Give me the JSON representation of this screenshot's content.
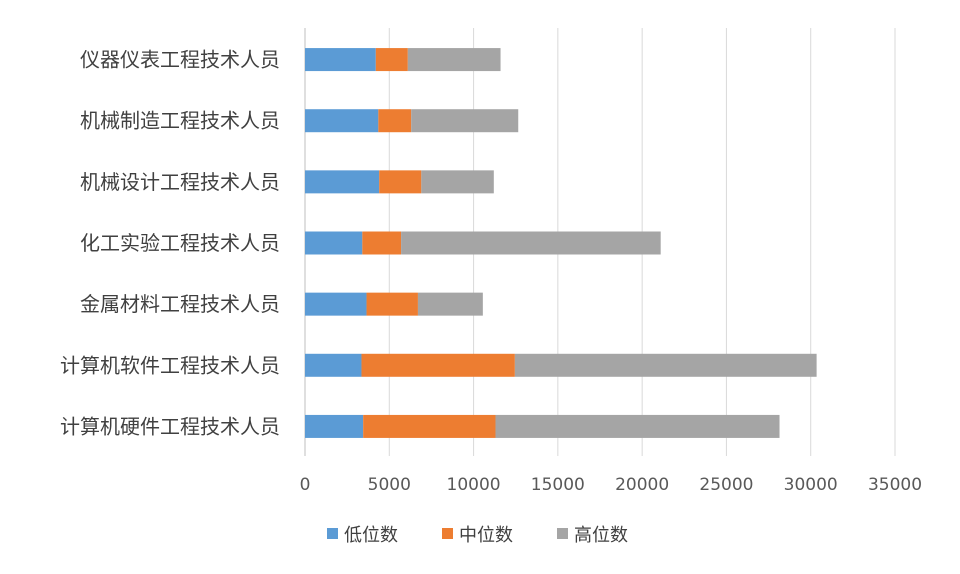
{
  "chart_data": {
    "type": "bar",
    "orientation": "horizontal",
    "stacked": true,
    "title": "",
    "xlabel": "",
    "ylabel": "",
    "categories": [
      "仪器仪表工程技术人员",
      "机械制造工程技术人员",
      "机械设计工程技术人员",
      "化工实验工程技术人员",
      "金属材料工程技术人员",
      "计算机软件工程技术人员",
      "计算机硬件工程技术人员"
    ],
    "series": [
      {
        "name": "低位数",
        "color": "#5B9BD5",
        "values": [
          4200,
          4350,
          4400,
          3400,
          3650,
          3350,
          3450
        ]
      },
      {
        "name": "中位数",
        "color": "#ED7D31",
        "values": [
          1900,
          1950,
          2500,
          2300,
          3050,
          9100,
          7850
        ]
      },
      {
        "name": "高位数",
        "color": "#A5A5A5",
        "values": [
          5500,
          6350,
          4300,
          15400,
          3850,
          17900,
          16850
        ]
      }
    ],
    "xlim": [
      0,
      35000
    ],
    "xticks": [
      "0",
      "5000",
      "10000",
      "15000",
      "20000",
      "25000",
      "30000",
      "35000"
    ],
    "grid": true,
    "legend": "bottom"
  }
}
